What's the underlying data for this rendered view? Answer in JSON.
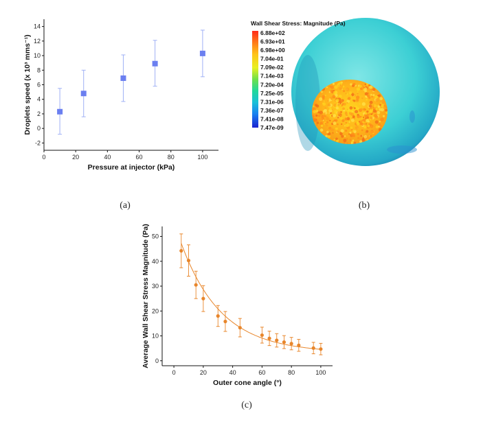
{
  "chart_data": [
    {
      "id": "a",
      "type": "scatter",
      "xlabel": "Pressure at injector (kPa)",
      "ylabel": "Droplets speed (x 10³ mms⁻¹)",
      "xlim": [
        0,
        110
      ],
      "ylim": [
        -3,
        15
      ],
      "xticks": [
        0,
        20,
        40,
        60,
        80,
        100
      ],
      "yticks": [
        -2,
        0,
        2,
        4,
        6,
        8,
        10,
        12,
        14
      ],
      "x": [
        10,
        25,
        50,
        70,
        100
      ],
      "y": [
        2.3,
        4.8,
        6.9,
        8.9,
        10.3
      ],
      "err_low": [
        -0.8,
        1.6,
        3.7,
        5.8,
        7.1
      ],
      "err_high": [
        5.5,
        8.0,
        10.1,
        12.1,
        13.5
      ],
      "marker": "square",
      "color": "#6b7ff0",
      "errcolor": "#9fb0f5"
    },
    {
      "id": "c",
      "type": "scatter",
      "xlabel": "Outer cone angle (°)",
      "ylabel": "Average Wall Shear Stress Magnitude (Pa)",
      "xlim": [
        -8,
        108
      ],
      "ylim": [
        -2,
        54
      ],
      "xticks": [
        0,
        20,
        40,
        60,
        80,
        100
      ],
      "yticks": [
        0,
        10,
        20,
        30,
        40,
        50
      ],
      "x": [
        5,
        10,
        15,
        20,
        30,
        35,
        45,
        60,
        65,
        70,
        75,
        80,
        85,
        95,
        100
      ],
      "y": [
        44.2,
        40.3,
        30.5,
        25.0,
        18.0,
        15.8,
        13.3,
        10.3,
        9.0,
        8.2,
        7.5,
        6.9,
        6.2,
        5.1,
        4.7
      ],
      "err": [
        6.8,
        6.3,
        5.5,
        5.2,
        4.2,
        4.0,
        3.7,
        3.2,
        2.9,
        2.7,
        2.6,
        2.5,
        2.4,
        2.3,
        2.3
      ],
      "fit": {
        "model": "exponential",
        "a": 52.8,
        "b": 0.0366,
        "c": 3.25
      },
      "color": "#e8862b"
    }
  ],
  "colorbar": {
    "title": "Wall Shear Stress: Magnitude (Pa)",
    "labels": [
      "6.88e+02",
      "6.93e+01",
      "6.98e+00",
      "7.04e-01",
      "7.09e-02",
      "7.14e-03",
      "7.20e-04",
      "7.25e-05",
      "7.31e-06",
      "7.36e-07",
      "7.41e-08",
      "7.47e-09"
    ],
    "colors": [
      "#ff2a1a",
      "#ff7a1a",
      "#ffb21a",
      "#ffd31a",
      "#d8ec28",
      "#8fe63c",
      "#3de06a",
      "#1ed0b2",
      "#1ab3e0",
      "#1a84f0",
      "#1a52e8",
      "#1a2ad8"
    ]
  },
  "panel_labels": {
    "a": "(a)",
    "b": "(b)",
    "c": "(c)"
  }
}
